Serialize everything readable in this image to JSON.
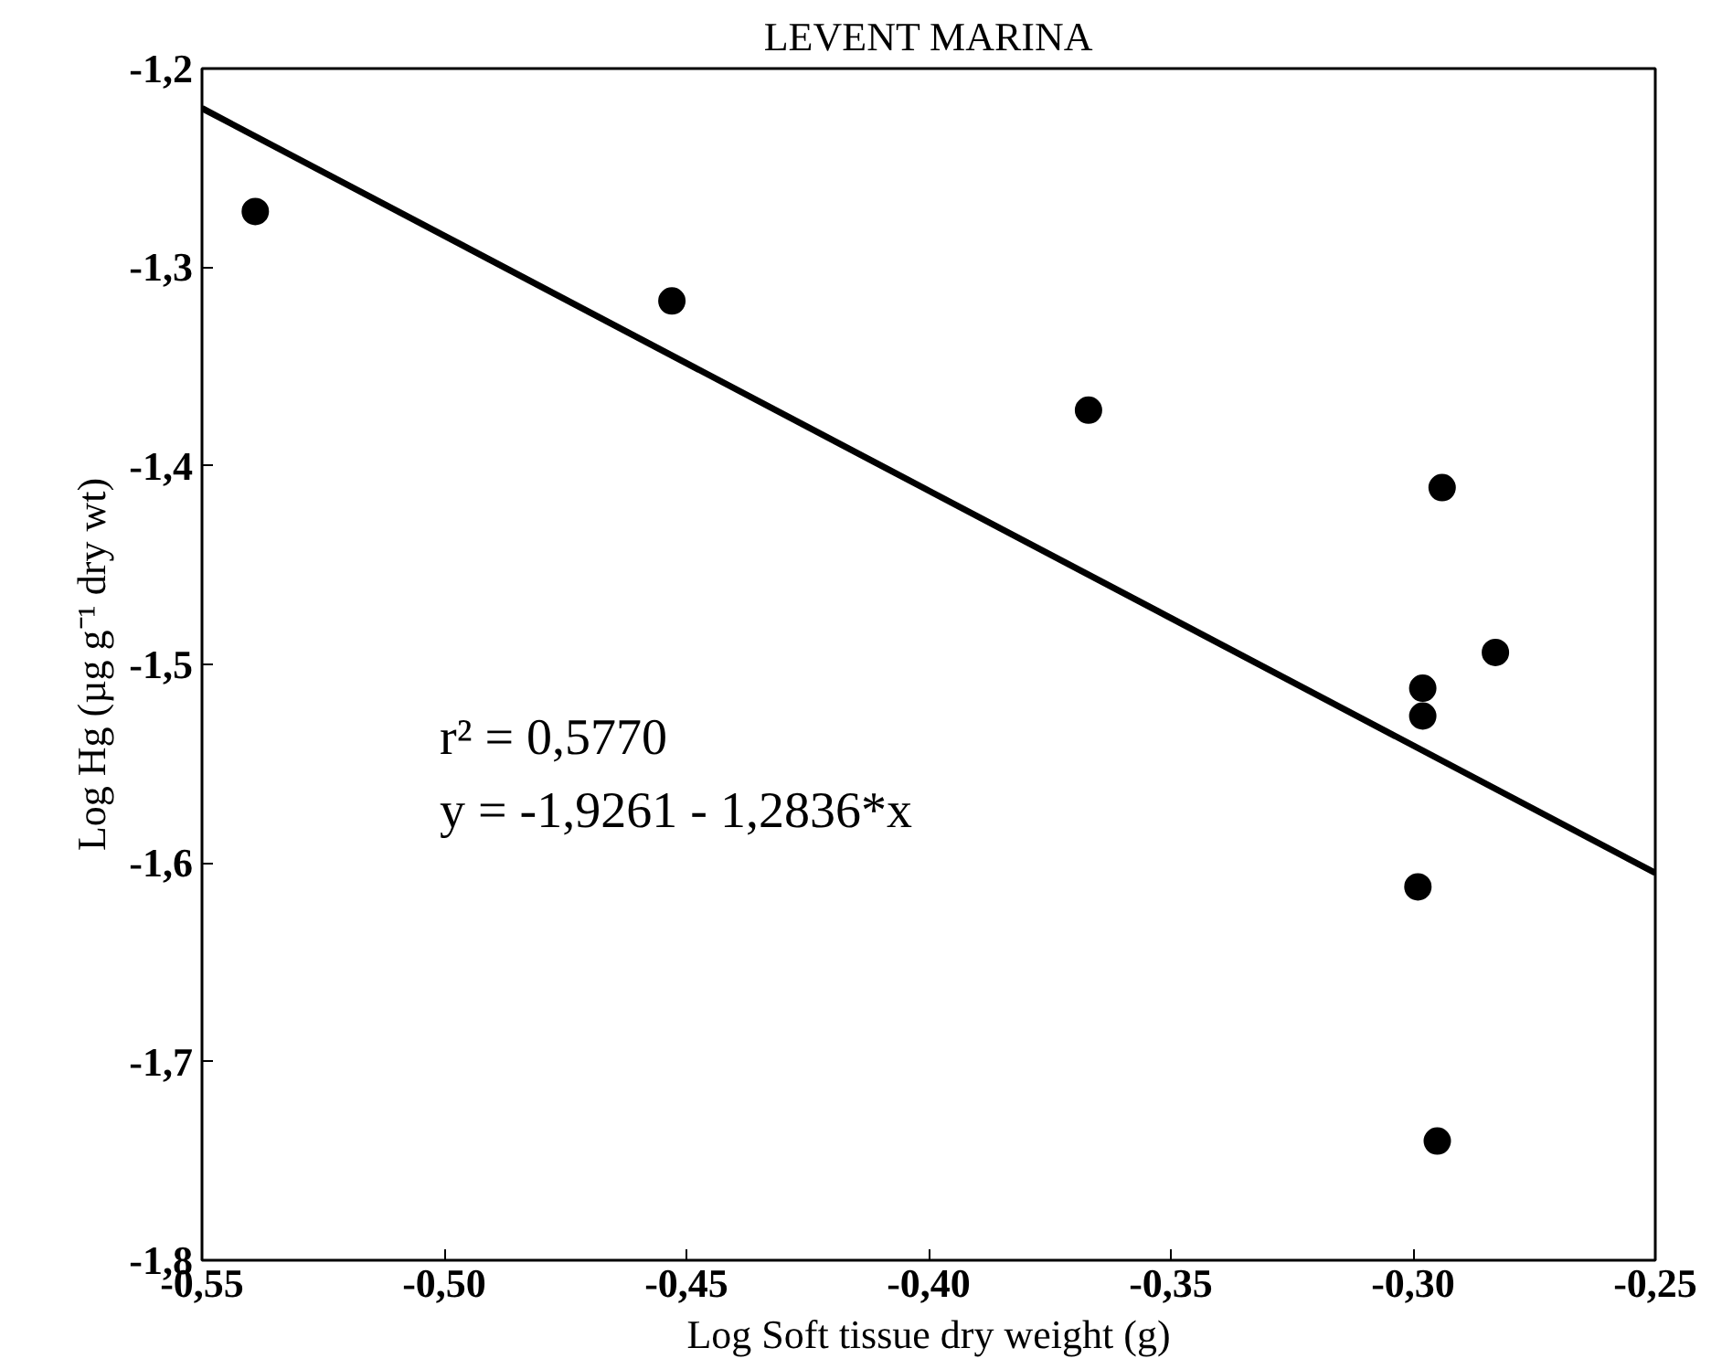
{
  "chart_data": {
    "type": "scatter",
    "title": "LEVENT MARINA",
    "xlabel": "Log Soft tissue dry weight (g)",
    "ylabel": "Log Hg (µg g⁻¹ dry wt)",
    "xlim": [
      -0.55,
      -0.25
    ],
    "ylim": [
      -1.8,
      -1.2
    ],
    "xticks": [
      {
        "value": -0.55,
        "label": "-0,55"
      },
      {
        "value": -0.5,
        "label": "-0,50"
      },
      {
        "value": -0.45,
        "label": "-0,45"
      },
      {
        "value": -0.4,
        "label": "-0,40"
      },
      {
        "value": -0.35,
        "label": "-0,35"
      },
      {
        "value": -0.3,
        "label": "-0,30"
      },
      {
        "value": -0.25,
        "label": "-0,25"
      }
    ],
    "yticks": [
      {
        "value": -1.8,
        "label": "-1,8"
      },
      {
        "value": -1.7,
        "label": "-1,7"
      },
      {
        "value": -1.6,
        "label": "-1,6"
      },
      {
        "value": -1.5,
        "label": "-1,5"
      },
      {
        "value": -1.4,
        "label": "-1,4"
      },
      {
        "value": -1.3,
        "label": "-1,3"
      },
      {
        "value": -1.2,
        "label": "-1,2"
      }
    ],
    "grid": false,
    "series": [
      {
        "marker": "circle",
        "color": "#000000",
        "x": [
          -0.539,
          -0.453,
          -0.367,
          -0.294,
          -0.283,
          -0.298,
          -0.298,
          -0.299,
          -0.295
        ],
        "values": [
          -1.272,
          -1.317,
          -1.372,
          -1.411,
          -1.494,
          -1.512,
          -1.526,
          -1.612,
          -1.74
        ]
      },
      {
        "type": "line",
        "color": "#000000",
        "line_style": "solid",
        "x": [
          -0.55,
          -0.25
        ],
        "values": [
          -1.22,
          -1.605
        ]
      }
    ],
    "annotations": [
      "r² = 0,5770",
      "y = -1,9261 - 1,2836*x"
    ]
  }
}
